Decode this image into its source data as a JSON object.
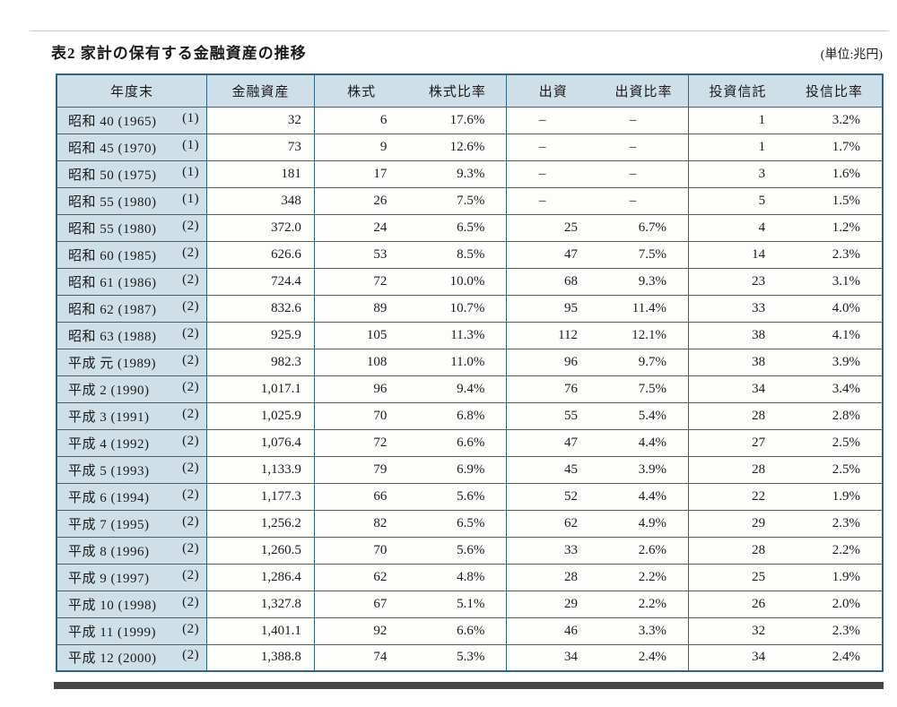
{
  "page": {
    "title": "表2  家計の保有する金融資産の推移",
    "unit_label": "(単位:兆円)"
  },
  "colors": {
    "band": "#cfdfe8",
    "line": "#2f6687"
  },
  "table": {
    "headers": [
      "年度末",
      "金融資産",
      "株式",
      "株式比率",
      "出資",
      "出資比率",
      "投資信託",
      "投信比率"
    ],
    "rows": [
      {
        "year": "昭和 40 (1965)",
        "note": "(1)",
        "values": [
          "32",
          "6",
          "17.6%",
          "–",
          "–",
          "1",
          "3.2%"
        ]
      },
      {
        "year": "昭和 45 (1970)",
        "note": "(1)",
        "values": [
          "73",
          "9",
          "12.6%",
          "–",
          "–",
          "1",
          "1.7%"
        ]
      },
      {
        "year": "昭和 50 (1975)",
        "note": "(1)",
        "values": [
          "181",
          "17",
          "9.3%",
          "–",
          "–",
          "3",
          "1.6%"
        ]
      },
      {
        "year": "昭和 55 (1980)",
        "note": "(1)",
        "values": [
          "348",
          "26",
          "7.5%",
          "–",
          "–",
          "5",
          "1.5%"
        ]
      },
      {
        "year": "昭和 55 (1980)",
        "note": "(2)",
        "values": [
          "372.0",
          "24",
          "6.5%",
          "25",
          "6.7%",
          "4",
          "1.2%"
        ]
      },
      {
        "year": "昭和 60 (1985)",
        "note": "(2)",
        "values": [
          "626.6",
          "53",
          "8.5%",
          "47",
          "7.5%",
          "14",
          "2.3%"
        ]
      },
      {
        "year": "昭和 61 (1986)",
        "note": "(2)",
        "values": [
          "724.4",
          "72",
          "10.0%",
          "68",
          "9.3%",
          "23",
          "3.1%"
        ]
      },
      {
        "year": "昭和 62 (1987)",
        "note": "(2)",
        "values": [
          "832.6",
          "89",
          "10.7%",
          "95",
          "11.4%",
          "33",
          "4.0%"
        ]
      },
      {
        "year": "昭和 63 (1988)",
        "note": "(2)",
        "values": [
          "925.9",
          "105",
          "11.3%",
          "112",
          "12.1%",
          "38",
          "4.1%"
        ]
      },
      {
        "year": "平成 元 (1989)",
        "note": "(2)",
        "values": [
          "982.3",
          "108",
          "11.0%",
          "96",
          "9.7%",
          "38",
          "3.9%"
        ]
      },
      {
        "year": "平成 2 (1990)",
        "note": "(2)",
        "values": [
          "1,017.1",
          "96",
          "9.4%",
          "76",
          "7.5%",
          "34",
          "3.4%"
        ]
      },
      {
        "year": "平成 3 (1991)",
        "note": "(2)",
        "values": [
          "1,025.9",
          "70",
          "6.8%",
          "55",
          "5.4%",
          "28",
          "2.8%"
        ]
      },
      {
        "year": "平成 4 (1992)",
        "note": "(2)",
        "values": [
          "1,076.4",
          "72",
          "6.6%",
          "47",
          "4.4%",
          "27",
          "2.5%"
        ]
      },
      {
        "year": "平成 5 (1993)",
        "note": "(2)",
        "values": [
          "1,133.9",
          "79",
          "6.9%",
          "45",
          "3.9%",
          "28",
          "2.5%"
        ]
      },
      {
        "year": "平成 6 (1994)",
        "note": "(2)",
        "values": [
          "1,177.3",
          "66",
          "5.6%",
          "52",
          "4.4%",
          "22",
          "1.9%"
        ]
      },
      {
        "year": "平成 7 (1995)",
        "note": "(2)",
        "values": [
          "1,256.2",
          "82",
          "6.5%",
          "62",
          "4.9%",
          "29",
          "2.3%"
        ]
      },
      {
        "year": "平成 8 (1996)",
        "note": "(2)",
        "values": [
          "1,260.5",
          "70",
          "5.6%",
          "33",
          "2.6%",
          "28",
          "2.2%"
        ]
      },
      {
        "year": "平成 9 (1997)",
        "note": "(2)",
        "values": [
          "1,286.4",
          "62",
          "4.8%",
          "28",
          "2.2%",
          "25",
          "1.9%"
        ]
      },
      {
        "year": "平成 10 (1998)",
        "note": "(2)",
        "values": [
          "1,327.8",
          "67",
          "5.1%",
          "29",
          "2.2%",
          "26",
          "2.0%"
        ]
      },
      {
        "year": "平成 11 (1999)",
        "note": "(2)",
        "values": [
          "1,401.1",
          "92",
          "6.6%",
          "46",
          "3.3%",
          "32",
          "2.3%"
        ]
      },
      {
        "year": "平成 12 (2000)",
        "note": "(2)",
        "values": [
          "1,388.8",
          "74",
          "5.3%",
          "34",
          "2.4%",
          "34",
          "2.4%"
        ]
      }
    ]
  }
}
